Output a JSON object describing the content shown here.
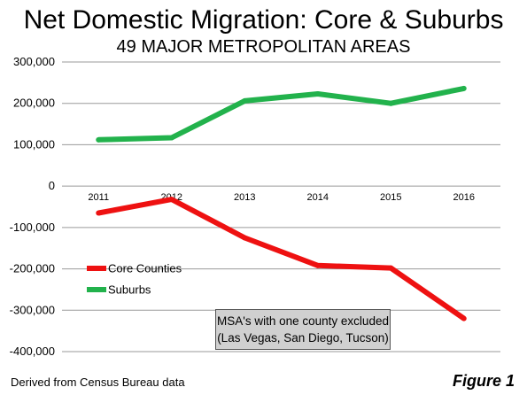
{
  "chart_data": {
    "type": "line",
    "title": "Net Domestic Migration: Core & Suburbs",
    "subtitle": "49 MAJOR METROPOLITAN AREAS",
    "categories": [
      "2011",
      "2012",
      "2013",
      "2014",
      "2015",
      "2016"
    ],
    "ylim": [
      -400000,
      300000
    ],
    "yticks": [
      300000,
      200000,
      100000,
      0,
      -100000,
      -200000,
      -300000,
      -400000
    ],
    "ytick_labels": [
      "300,000",
      "200,000",
      "100,000",
      "0",
      "-100,000",
      "-200,000",
      "-300,000",
      "-400,000"
    ],
    "grid": true,
    "legend_position": "lower-left",
    "series": [
      {
        "name": "Core Counties",
        "color": "#ee1111",
        "values": [
          -65000,
          -32000,
          -125000,
          -192000,
          -198000,
          -320000
        ]
      },
      {
        "name": "Suburbs",
        "color": "#22b24c",
        "values": [
          112000,
          117000,
          206000,
          223000,
          200000,
          236000
        ]
      }
    ],
    "annotation": {
      "line1": "MSA's with one county excluded",
      "line2": "(Las Vegas, San Diego, Tucson)"
    }
  },
  "footer": {
    "source": "Derived from Census Bureau data",
    "figure_label": "Figure 1"
  }
}
